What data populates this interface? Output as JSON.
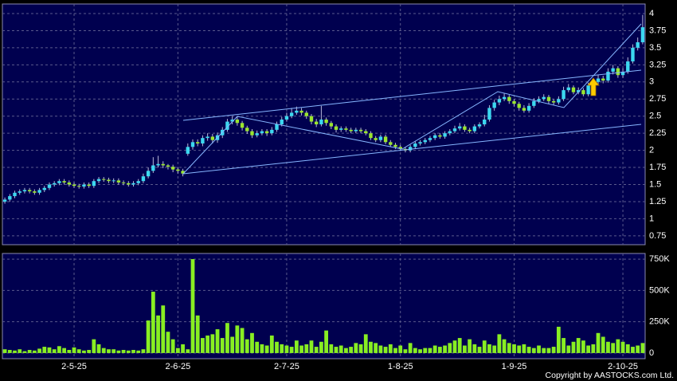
{
  "chart_data": [
    {
      "type": "candlestick",
      "up_color": "#3cd8f0",
      "down_color": "#9ae62e",
      "ylim": [
        0.62,
        4.14
      ],
      "yticks": [
        0.75,
        1,
        1.25,
        1.5,
        1.75,
        2,
        2.25,
        2.5,
        2.75,
        3,
        3.25,
        3.5,
        3.75,
        4
      ],
      "grid": true,
      "open": [
        1.25,
        1.28,
        1.33,
        1.38,
        1.4,
        1.42,
        1.4,
        1.38,
        1.42,
        1.45,
        1.5,
        1.52,
        1.55,
        1.53,
        1.5,
        1.48,
        1.47,
        1.5,
        1.48,
        1.55,
        1.58,
        1.57,
        1.55,
        1.56,
        1.53,
        1.52,
        1.5,
        1.52,
        1.55,
        1.62,
        1.7,
        1.78,
        1.8,
        1.78,
        1.76,
        1.72,
        1.7,
        1.95,
        2.05,
        2.12,
        2.1,
        2.18,
        2.2,
        2.15,
        2.22,
        2.3,
        2.42,
        2.45,
        2.4,
        2.33,
        2.28,
        2.22,
        2.25,
        2.28,
        2.25,
        2.3,
        2.38,
        2.45,
        2.5,
        2.55,
        2.58,
        2.55,
        2.5,
        2.42,
        2.38,
        2.45,
        2.4,
        2.35,
        2.3,
        2.32,
        2.3,
        2.28,
        2.3,
        2.28,
        2.25,
        2.18,
        2.15,
        2.2,
        2.12,
        2.08,
        2.05,
        2.02,
        2.0,
        2.05,
        2.1,
        2.12,
        2.15,
        2.18,
        2.22,
        2.2,
        2.25,
        2.28,
        2.32,
        2.35,
        2.3,
        2.28,
        2.35,
        2.38,
        2.45,
        2.62,
        2.7,
        2.75,
        2.78,
        2.72,
        2.68,
        2.62,
        2.58,
        2.65,
        2.72,
        2.75,
        2.78,
        2.72,
        2.7,
        2.75,
        2.88,
        2.92,
        2.85,
        2.88,
        2.82,
        2.95,
        3.0,
        3.05,
        3.02,
        3.15,
        3.2,
        3.1,
        3.15,
        3.3,
        3.5,
        3.58
      ],
      "high": [
        1.31,
        1.36,
        1.41,
        1.43,
        1.45,
        1.45,
        1.43,
        1.45,
        1.48,
        1.53,
        1.55,
        1.58,
        1.58,
        1.56,
        1.53,
        1.51,
        1.53,
        1.53,
        1.58,
        1.61,
        1.61,
        1.6,
        1.59,
        1.59,
        1.56,
        1.55,
        1.55,
        1.58,
        1.66,
        1.75,
        1.9,
        1.92,
        1.84,
        1.8,
        1.79,
        1.75,
        1.73,
        2.1,
        2.16,
        2.16,
        2.22,
        2.25,
        2.24,
        2.26,
        2.34,
        2.46,
        2.5,
        2.49,
        2.43,
        2.36,
        2.31,
        2.29,
        2.31,
        2.31,
        2.34,
        2.42,
        2.49,
        2.55,
        2.62,
        2.64,
        2.62,
        2.58,
        2.53,
        2.46,
        2.65,
        2.48,
        2.43,
        2.38,
        2.35,
        2.35,
        2.33,
        2.33,
        2.33,
        2.31,
        2.28,
        2.21,
        2.23,
        2.23,
        2.15,
        2.11,
        2.08,
        2.05,
        2.08,
        2.13,
        2.15,
        2.18,
        2.21,
        2.25,
        2.25,
        2.28,
        2.31,
        2.36,
        2.4,
        2.38,
        2.33,
        2.38,
        2.41,
        2.52,
        2.66,
        2.74,
        2.8,
        2.83,
        2.81,
        2.75,
        2.71,
        2.66,
        2.69,
        2.76,
        2.79,
        2.82,
        2.81,
        2.75,
        2.79,
        2.93,
        2.97,
        2.95,
        2.92,
        2.91,
        2.99,
        3.05,
        3.1,
        3.09,
        3.2,
        3.25,
        3.23,
        3.2,
        3.36,
        3.55,
        3.65,
        3.98
      ],
      "low": [
        1.22,
        1.25,
        1.3,
        1.35,
        1.37,
        1.37,
        1.35,
        1.35,
        1.39,
        1.42,
        1.47,
        1.49,
        1.5,
        1.47,
        1.45,
        1.44,
        1.44,
        1.45,
        1.45,
        1.52,
        1.54,
        1.52,
        1.52,
        1.5,
        1.49,
        1.47,
        1.47,
        1.49,
        1.52,
        1.59,
        1.67,
        1.75,
        1.74,
        1.72,
        1.68,
        1.66,
        1.62,
        1.92,
        2.01,
        2.06,
        2.06,
        2.14,
        2.1,
        2.11,
        2.18,
        2.27,
        2.38,
        2.36,
        2.29,
        2.24,
        2.18,
        2.19,
        2.22,
        2.21,
        2.22,
        2.27,
        2.35,
        2.42,
        2.47,
        2.52,
        2.51,
        2.46,
        2.38,
        2.34,
        2.35,
        2.36,
        2.31,
        2.26,
        2.27,
        2.27,
        2.25,
        2.25,
        2.25,
        2.22,
        2.15,
        2.12,
        2.12,
        2.09,
        2.05,
        2.02,
        1.99,
        1.97,
        1.97,
        2.02,
        2.07,
        2.09,
        2.12,
        2.15,
        2.17,
        2.17,
        2.22,
        2.25,
        2.29,
        2.27,
        2.25,
        2.25,
        2.32,
        2.35,
        2.42,
        2.58,
        2.66,
        2.72,
        2.68,
        2.64,
        2.58,
        2.55,
        2.55,
        2.62,
        2.69,
        2.72,
        2.68,
        2.66,
        2.67,
        2.72,
        2.85,
        2.82,
        2.82,
        2.79,
        2.79,
        2.92,
        2.96,
        2.98,
        2.99,
        3.11,
        3.06,
        3.06,
        3.12,
        3.27,
        3.46,
        3.55
      ],
      "close": [
        1.28,
        1.33,
        1.38,
        1.4,
        1.42,
        1.4,
        1.38,
        1.42,
        1.45,
        1.5,
        1.52,
        1.55,
        1.53,
        1.5,
        1.48,
        1.47,
        1.5,
        1.48,
        1.55,
        1.58,
        1.57,
        1.55,
        1.56,
        1.53,
        1.52,
        1.5,
        1.52,
        1.55,
        1.62,
        1.7,
        1.78,
        1.8,
        1.78,
        1.76,
        1.72,
        1.7,
        1.66,
        2.05,
        2.12,
        2.1,
        2.18,
        2.2,
        2.15,
        2.22,
        2.3,
        2.42,
        2.45,
        2.4,
        2.33,
        2.28,
        2.22,
        2.25,
        2.28,
        2.25,
        2.3,
        2.38,
        2.45,
        2.5,
        2.55,
        2.58,
        2.55,
        2.5,
        2.42,
        2.38,
        2.45,
        2.4,
        2.35,
        2.3,
        2.32,
        2.3,
        2.28,
        2.3,
        2.28,
        2.25,
        2.18,
        2.15,
        2.2,
        2.12,
        2.08,
        2.05,
        2.02,
        2.0,
        2.05,
        2.1,
        2.12,
        2.15,
        2.18,
        2.22,
        2.2,
        2.25,
        2.28,
        2.32,
        2.35,
        2.3,
        2.28,
        2.35,
        2.38,
        2.45,
        2.62,
        2.7,
        2.75,
        2.78,
        2.72,
        2.68,
        2.62,
        2.58,
        2.65,
        2.72,
        2.75,
        2.78,
        2.72,
        2.7,
        2.75,
        2.88,
        2.92,
        2.85,
        2.88,
        2.82,
        2.95,
        3.0,
        3.05,
        3.02,
        3.15,
        3.2,
        3.1,
        3.15,
        3.3,
        3.5,
        3.58,
        3.8
      ]
    },
    {
      "type": "bar",
      "color": "#88ee22",
      "ylim": [
        -45000,
        795000
      ],
      "yticks": [
        0,
        {
          "value": 250000,
          "label": "250K"
        },
        {
          "value": 500000,
          "label": "500K"
        },
        {
          "value": 750000,
          "label": "750K"
        }
      ],
      "grid": true,
      "categories": [
        null,
        null,
        null,
        null,
        null,
        null,
        null,
        null,
        null,
        null,
        null,
        null,
        null,
        null,
        "2-5-25",
        null,
        null,
        null,
        null,
        null,
        null,
        null,
        null,
        null,
        null,
        null,
        null,
        null,
        null,
        null,
        null,
        null,
        null,
        null,
        null,
        "2-6-25",
        null,
        null,
        null,
        null,
        null,
        null,
        null,
        null,
        null,
        null,
        null,
        null,
        null,
        null,
        null,
        null,
        null,
        null,
        null,
        null,
        null,
        "2-7-25",
        null,
        null,
        null,
        null,
        null,
        null,
        null,
        null,
        null,
        null,
        null,
        null,
        null,
        null,
        null,
        null,
        null,
        null,
        null,
        null,
        null,
        null,
        "1-8-25",
        null,
        null,
        null,
        null,
        null,
        null,
        null,
        null,
        null,
        null,
        null,
        null,
        null,
        null,
        null,
        null,
        null,
        null,
        null,
        null,
        null,
        null,
        "1-9-25",
        null,
        null,
        null,
        null,
        null,
        null,
        null,
        null,
        null,
        null,
        null,
        null,
        null,
        null,
        null,
        null,
        null,
        null,
        null,
        null,
        null,
        "2-10-25",
        null,
        null,
        null,
        null
      ],
      "values": [
        30000,
        25000,
        20000,
        30000,
        15000,
        25000,
        20000,
        35000,
        50000,
        45000,
        30000,
        55000,
        40000,
        25000,
        45000,
        30000,
        20000,
        25000,
        110000,
        70000,
        40000,
        30000,
        30000,
        20000,
        25000,
        20000,
        25000,
        20000,
        30000,
        260000,
        490000,
        300000,
        380000,
        170000,
        110000,
        40000,
        70000,
        30000,
        750000,
        300000,
        120000,
        140000,
        150000,
        190000,
        120000,
        240000,
        130000,
        220000,
        200000,
        110000,
        160000,
        90000,
        70000,
        60000,
        140000,
        90000,
        70000,
        60000,
        50000,
        100000,
        60000,
        70000,
        100000,
        50000,
        90000,
        180000,
        70000,
        50000,
        60000,
        40000,
        50000,
        80000,
        70000,
        150000,
        90000,
        80000,
        60000,
        50000,
        70000,
        40000,
        60000,
        30000,
        80000,
        40000,
        30000,
        40000,
        40000,
        60000,
        50000,
        60000,
        80000,
        100000,
        120000,
        60000,
        110000,
        70000,
        50000,
        100000,
        70000,
        60000,
        150000,
        110000,
        80000,
        70000,
        60000,
        70000,
        50000,
        40000,
        60000,
        40000,
        40000,
        50000,
        210000,
        120000,
        60000,
        90000,
        120000,
        100000,
        60000,
        70000,
        160000,
        130000,
        90000,
        80000,
        110000,
        90000,
        70000,
        50000,
        60000,
        80000
      ]
    }
  ],
  "copyright": "Copyright by AASTOCKS.com Ltd."
}
